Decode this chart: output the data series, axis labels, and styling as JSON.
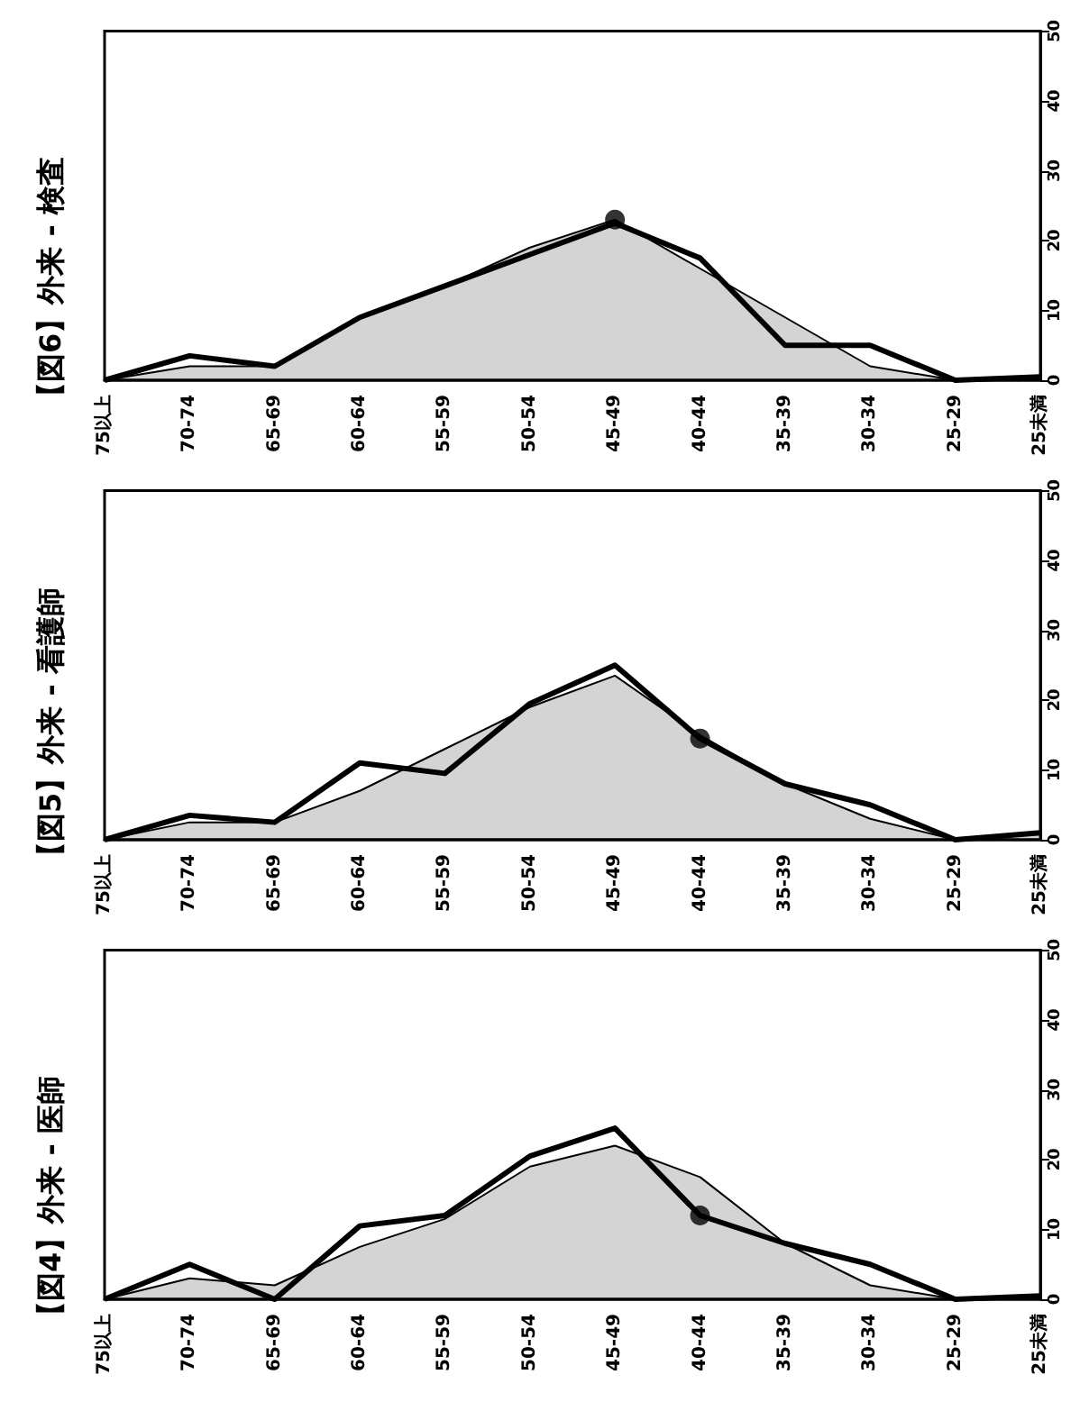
{
  "chart_data": [
    {
      "type": "area",
      "title": "【図6】外来 - 検査",
      "categories": [
        "75以上",
        "70-74",
        "65-69",
        "60-64",
        "55-59",
        "50-54",
        "45-49",
        "40-44",
        "35-39",
        "30-34",
        "25-29",
        "25未満"
      ],
      "ylim": [
        0,
        50
      ],
      "yticks": [
        0,
        10,
        20,
        30,
        40,
        50
      ],
      "grid": false,
      "series": [
        {
          "color": "#000000",
          "values": [
            0,
            2,
            2,
            9,
            13.5,
            19,
            23,
            16,
            9,
            2,
            0,
            0.5
          ]
        },
        {
          "type": "line",
          "color": "#000000",
          "values": [
            0,
            3.5,
            2,
            9,
            13.5,
            18,
            22.5,
            17.5,
            5,
            5,
            0,
            0.5
          ]
        },
        {
          "type": "scatter",
          "color": "#000000",
          "marker": "circle",
          "x": [
            "45-49"
          ],
          "values": [
            23
          ]
        }
      ]
    },
    {
      "type": "area",
      "title": "【図5】外来 - 看護師",
      "categories": [
        "75以上",
        "70-74",
        "65-69",
        "60-64",
        "55-59",
        "50-54",
        "45-49",
        "40-44",
        "35-39",
        "30-34",
        "25-29",
        "25未満"
      ],
      "ylim": [
        0,
        50
      ],
      "yticks": [
        0,
        10,
        20,
        30,
        40,
        50
      ],
      "grid": false,
      "series": [
        {
          "color": "#000000",
          "values": [
            0,
            2.5,
            2.5,
            7,
            13,
            19,
            23.5,
            15,
            8,
            3,
            0,
            1
          ]
        },
        {
          "type": "line",
          "color": "#000000",
          "values": [
            0,
            3.5,
            2.5,
            11,
            9.5,
            19.5,
            25,
            14.5,
            8,
            5,
            0,
            1
          ]
        },
        {
          "type": "scatter",
          "color": "#000000",
          "marker": "circle",
          "x": [
            "40-44"
          ],
          "values": [
            14.5
          ]
        }
      ]
    },
    {
      "type": "area",
      "title": "【図4】外来 - 医師",
      "categories": [
        "75以上",
        "70-74",
        "65-69",
        "60-64",
        "55-59",
        "50-54",
        "45-49",
        "40-44",
        "35-39",
        "30-34",
        "25-29",
        "25未満"
      ],
      "ylim": [
        0,
        50
      ],
      "yticks": [
        0,
        10,
        20,
        30,
        40,
        50
      ],
      "grid": false,
      "series": [
        {
          "color": "#000000",
          "values": [
            0,
            3,
            2,
            7.5,
            11.5,
            19,
            22,
            17.5,
            8,
            2,
            0,
            0.5
          ]
        },
        {
          "type": "line",
          "color": "#000000",
          "values": [
            0,
            5,
            0,
            10.5,
            12,
            20.5,
            24.5,
            12,
            8,
            5,
            0,
            0.5
          ]
        },
        {
          "type": "scatter",
          "color": "#000000",
          "marker": "circle",
          "x": [
            "40-44"
          ],
          "values": [
            12
          ]
        }
      ]
    }
  ]
}
